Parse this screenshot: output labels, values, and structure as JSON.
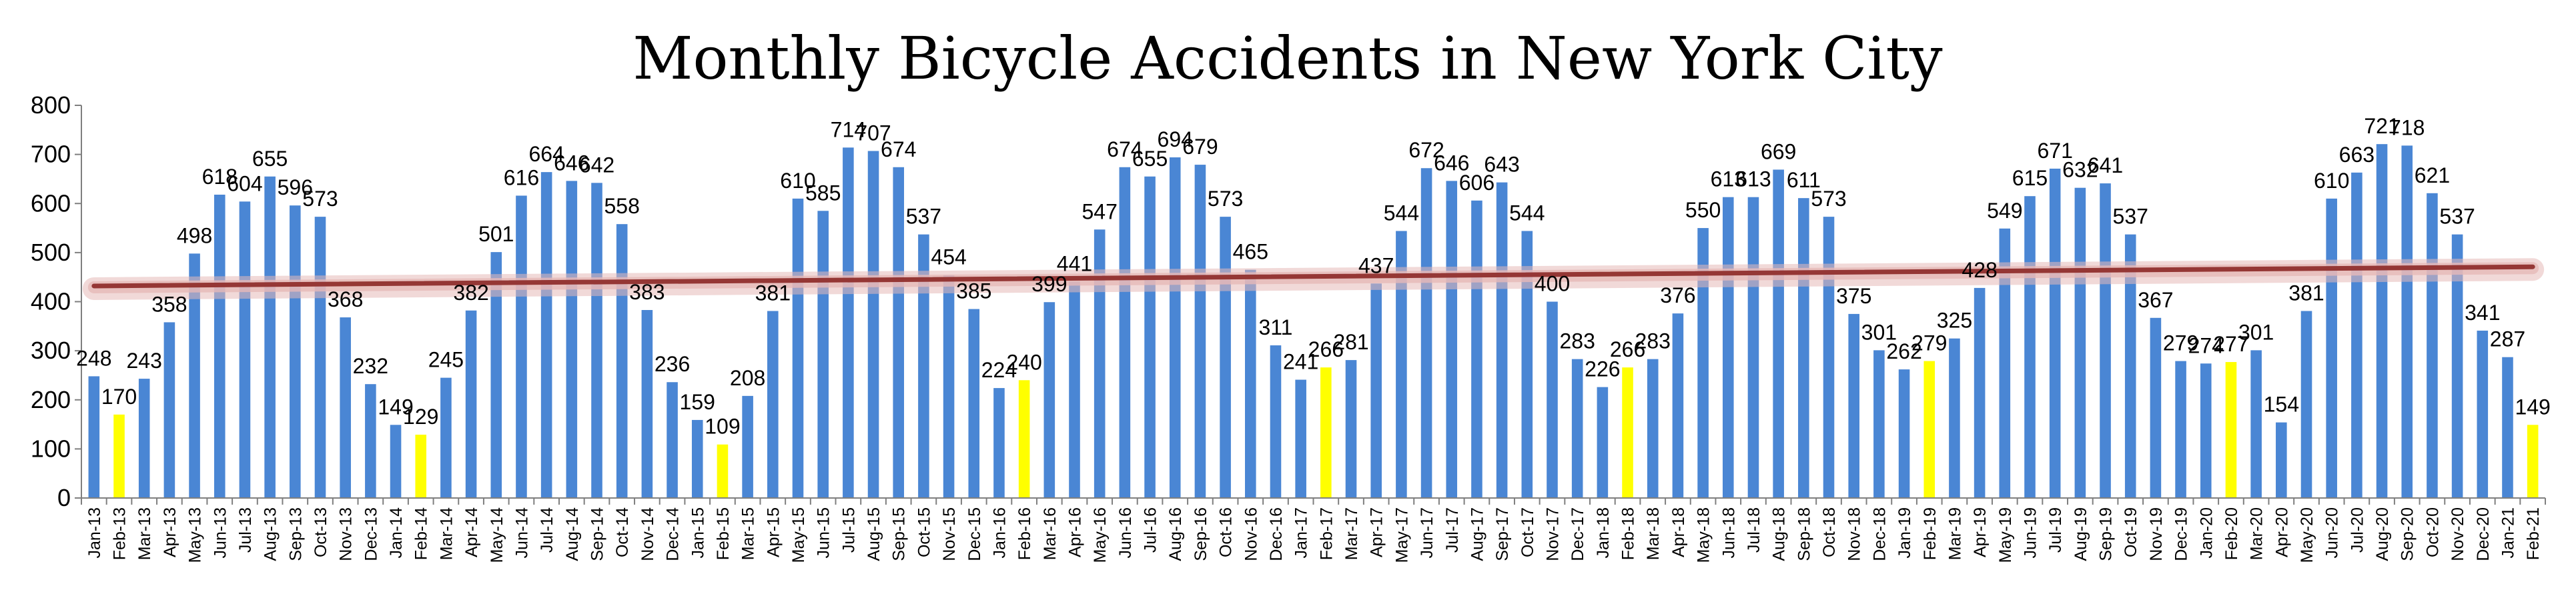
{
  "chart_data": {
    "type": "bar",
    "title": "Monthly Bicycle Accidents in New York City",
    "xlabel": "",
    "ylabel": "",
    "ylim": [
      0,
      800
    ],
    "yticks": [
      0,
      100,
      200,
      300,
      400,
      500,
      600,
      700,
      800
    ],
    "grid": false,
    "legend": "none",
    "colors": {
      "bar": "#4a86d4",
      "highlight": "#ffff00",
      "trend": "#953735",
      "trend_glow": "#e6b9b8",
      "axis": "#7f7f7f"
    },
    "highlight_rule": "February bars are highlighted yellow",
    "categories": [
      "Jan-13",
      "Feb-13",
      "Mar-13",
      "Apr-13",
      "May-13",
      "Jun-13",
      "Jul-13",
      "Aug-13",
      "Sep-13",
      "Oct-13",
      "Nov-13",
      "Dec-13",
      "Jan-14",
      "Feb-14",
      "Mar-14",
      "Apr-14",
      "May-14",
      "Jun-14",
      "Jul-14",
      "Aug-14",
      "Sep-14",
      "Oct-14",
      "Nov-14",
      "Dec-14",
      "Jan-15",
      "Feb-15",
      "Mar-15",
      "Apr-15",
      "May-15",
      "Jun-15",
      "Jul-15",
      "Aug-15",
      "Sep-15",
      "Oct-15",
      "Nov-15",
      "Dec-15",
      "Jan-16",
      "Feb-16",
      "Mar-16",
      "Apr-16",
      "May-16",
      "Jun-16",
      "Jul-16",
      "Aug-16",
      "Sep-16",
      "Oct-16",
      "Nov-16",
      "Dec-16",
      "Jan-17",
      "Feb-17",
      "Mar-17",
      "Apr-17",
      "May-17",
      "Jun-17",
      "Jul-17",
      "Aug-17",
      "Sep-17",
      "Oct-17",
      "Nov-17",
      "Dec-17",
      "Jan-18",
      "Feb-18",
      "Mar-18",
      "Apr-18",
      "May-18",
      "Jun-18",
      "Jul-18",
      "Aug-18",
      "Sep-18",
      "Oct-18",
      "Nov-18",
      "Dec-18",
      "Jan-19",
      "Feb-19",
      "Mar-19",
      "Apr-19",
      "May-19",
      "Jun-19",
      "Jul-19",
      "Aug-19",
      "Sep-19",
      "Oct-19",
      "Nov-19",
      "Dec-19",
      "Jan-20",
      "Feb-20",
      "Mar-20",
      "Apr-20",
      "May-20",
      "Jun-20",
      "Jul-20",
      "Aug-20",
      "Sep-20",
      "Oct-20",
      "Nov-20",
      "Dec-20",
      "Jan-21",
      "Feb-21"
    ],
    "values": [
      248,
      170,
      243,
      358,
      498,
      618,
      604,
      655,
      596,
      573,
      368,
      232,
      149,
      129,
      245,
      382,
      501,
      616,
      664,
      646,
      642,
      558,
      383,
      236,
      159,
      109,
      208,
      381,
      610,
      585,
      714,
      707,
      674,
      537,
      454,
      385,
      224,
      240,
      399,
      441,
      547,
      674,
      655,
      694,
      679,
      573,
      465,
      311,
      241,
      266,
      281,
      437,
      544,
      672,
      646,
      606,
      643,
      544,
      400,
      283,
      226,
      266,
      283,
      376,
      550,
      613,
      613,
      669,
      611,
      573,
      375,
      301,
      262,
      279,
      325,
      428,
      549,
      615,
      671,
      632,
      641,
      537,
      367,
      279,
      274,
      277,
      301,
      154,
      381,
      610,
      663,
      721,
      718,
      621,
      537,
      341,
      287,
      149
    ],
    "trendline": {
      "type": "linear",
      "start": 432,
      "end": 471
    }
  }
}
